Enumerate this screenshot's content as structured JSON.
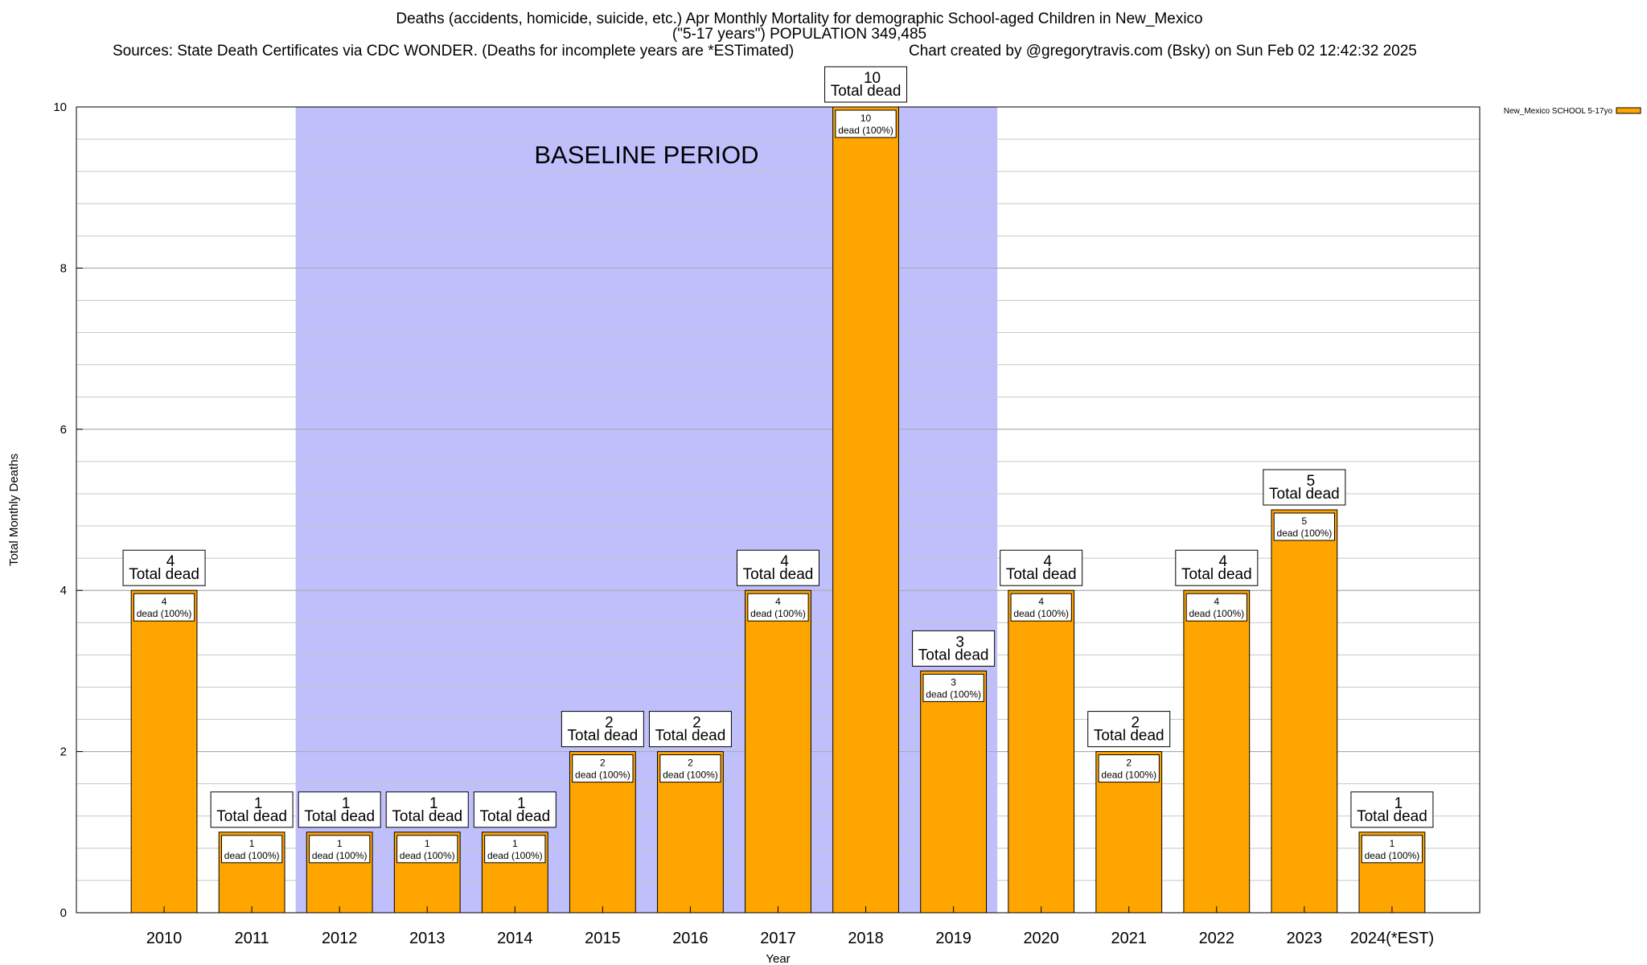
{
  "chart_data": {
    "type": "bar",
    "title": "Deaths (accidents, homicide, suicide, etc.) Apr Monthly Mortality for demographic School-aged Children in New_Mexico",
    "subtitle": "(\"5-17 years\") POPULATION 349,485",
    "sources": "Sources: State Death Certificates via CDC WONDER. (Deaths for incomplete years are *ESTimated)",
    "credit": "Chart created by @gregorytravis.com (Bsky) on Sun Feb 02 12:42:32 2025",
    "xlabel": "Year",
    "ylabel": "Total Monthly Deaths",
    "ylim": [
      0,
      10
    ],
    "yticks": [
      0,
      2,
      4,
      6,
      8,
      10
    ],
    "grid": true,
    "legend_position": "top-right",
    "categories": [
      "2010",
      "2011",
      "2012",
      "2013",
      "2014",
      "2015",
      "2016",
      "2017",
      "2018",
      "2019",
      "2020",
      "2021",
      "2022",
      "2023",
      "2024(*EST)"
    ],
    "series": [
      {
        "name": "New_Mexico SCHOOL 5-17yo",
        "color": "#ffa500",
        "values": [
          4,
          1,
          1,
          1,
          1,
          2,
          2,
          4,
          10,
          3,
          4,
          2,
          4,
          5,
          1
        ]
      }
    ],
    "total_label_suffix": "Total dead",
    "inner_labels": [
      "4",
      "1",
      "1",
      "1",
      "1",
      "2",
      "2",
      "4",
      "10",
      "3",
      "4",
      "2",
      "4",
      "5",
      "1"
    ],
    "inner_label_suffix": "dead (100%)",
    "baseline": {
      "label": "BASELINE PERIOD",
      "from": "2012",
      "to": "2019",
      "color": "#bfbffc"
    }
  }
}
